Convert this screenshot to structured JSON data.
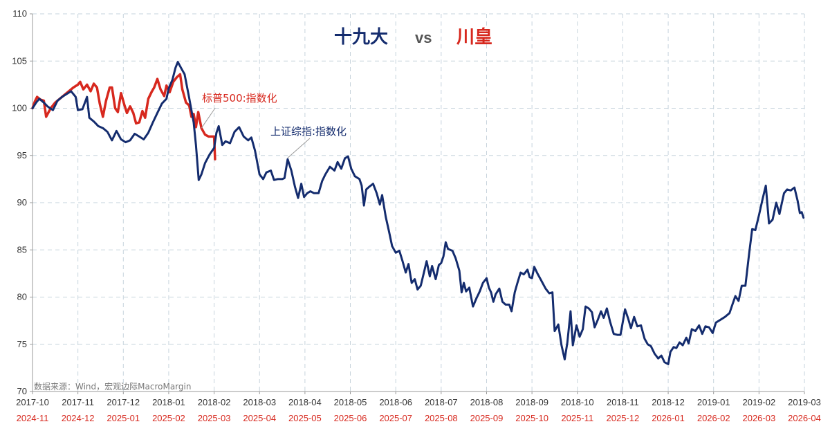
{
  "chart_data": {
    "type": "line",
    "title_part1": "十九大",
    "title_vs": "vs",
    "title_part2": "川皇",
    "source": "数据来源：Wind，宏观边际MacroMargin",
    "ylim": [
      70,
      110
    ],
    "yticks": [
      70,
      75,
      80,
      85,
      90,
      95,
      100,
      105,
      110
    ],
    "grid": true,
    "x_top_labels": [
      "2017-10",
      "2017-11",
      "2017-12",
      "2018-01",
      "2018-02",
      "2018-03",
      "2018-04",
      "2018-05",
      "2018-06",
      "2018-07",
      "2018-08",
      "2018-09",
      "2018-10",
      "2018-11",
      "2018-12",
      "2019-01",
      "2019-02",
      "2019-03"
    ],
    "x_bottom_labels": [
      "2024-11",
      "2024-12",
      "2025-01",
      "2025-02",
      "2025-03",
      "2025-04",
      "2025-05",
      "2025-06",
      "2025-07",
      "2025-08",
      "2025-09",
      "2025-10",
      "2025-11",
      "2025-12",
      "2026-01",
      "2026-02",
      "2026-03",
      "2026-04"
    ],
    "x_range_months": [
      0,
      17
    ],
    "colors": {
      "blue": "#142c6e",
      "red": "#d7281e",
      "grid": "#c6d3dc"
    },
    "series": [
      {
        "name": "上证综指:指数化",
        "color": "#142c6e",
        "points": [
          [
            0.0,
            100.0
          ],
          [
            0.08,
            100.6
          ],
          [
            0.15,
            101.0
          ],
          [
            0.25,
            100.6
          ],
          [
            0.33,
            100.2
          ],
          [
            0.45,
            99.8
          ],
          [
            0.55,
            100.8
          ],
          [
            0.65,
            101.2
          ],
          [
            0.75,
            101.5
          ],
          [
            0.85,
            101.8
          ],
          [
            0.95,
            101.2
          ],
          [
            1.0,
            99.8
          ],
          [
            1.1,
            99.9
          ],
          [
            1.2,
            101.2
          ],
          [
            1.25,
            99.0
          ],
          [
            1.35,
            98.6
          ],
          [
            1.45,
            98.1
          ],
          [
            1.55,
            97.9
          ],
          [
            1.65,
            97.5
          ],
          [
            1.75,
            96.6
          ],
          [
            1.85,
            97.6
          ],
          [
            1.95,
            96.7
          ],
          [
            2.05,
            96.4
          ],
          [
            2.15,
            96.6
          ],
          [
            2.25,
            97.3
          ],
          [
            2.35,
            97.0
          ],
          [
            2.45,
            96.7
          ],
          [
            2.55,
            97.4
          ],
          [
            2.65,
            98.5
          ],
          [
            2.75,
            99.5
          ],
          [
            2.85,
            100.5
          ],
          [
            2.95,
            101.0
          ],
          [
            3.0,
            102.1
          ],
          [
            3.08,
            103.0
          ],
          [
            3.15,
            104.3
          ],
          [
            3.2,
            104.9
          ],
          [
            3.28,
            104.2
          ],
          [
            3.35,
            103.6
          ],
          [
            3.45,
            101.1
          ],
          [
            3.55,
            98.5
          ],
          [
            3.6,
            96.1
          ],
          [
            3.66,
            92.4
          ],
          [
            3.72,
            93.0
          ],
          [
            3.8,
            94.2
          ],
          [
            3.9,
            95.1
          ],
          [
            4.0,
            95.8
          ],
          [
            4.05,
            97.4
          ],
          [
            4.1,
            98.1
          ],
          [
            4.18,
            96.1
          ],
          [
            4.25,
            96.5
          ],
          [
            4.35,
            96.3
          ],
          [
            4.45,
            97.5
          ],
          [
            4.55,
            98.0
          ],
          [
            4.65,
            97.0
          ],
          [
            4.75,
            96.6
          ],
          [
            4.82,
            96.9
          ],
          [
            4.9,
            95.5
          ],
          [
            5.0,
            93.0
          ],
          [
            5.08,
            92.5
          ],
          [
            5.15,
            93.2
          ],
          [
            5.25,
            93.4
          ],
          [
            5.32,
            92.4
          ],
          [
            5.4,
            92.5
          ],
          [
            5.5,
            92.5
          ],
          [
            5.55,
            92.6
          ],
          [
            5.62,
            94.6
          ],
          [
            5.7,
            93.4
          ],
          [
            5.78,
            91.7
          ],
          [
            5.85,
            90.5
          ],
          [
            5.92,
            92.0
          ],
          [
            5.98,
            90.6
          ],
          [
            6.05,
            91.0
          ],
          [
            6.12,
            91.2
          ],
          [
            6.2,
            91.0
          ],
          [
            6.3,
            91.0
          ],
          [
            6.38,
            92.3
          ],
          [
            6.45,
            93.0
          ],
          [
            6.55,
            93.8
          ],
          [
            6.65,
            93.4
          ],
          [
            6.72,
            94.3
          ],
          [
            6.8,
            93.6
          ],
          [
            6.88,
            94.7
          ],
          [
            6.95,
            94.9
          ],
          [
            7.02,
            93.6
          ],
          [
            7.1,
            92.8
          ],
          [
            7.2,
            92.5
          ],
          [
            7.25,
            91.8
          ],
          [
            7.3,
            89.7
          ],
          [
            7.35,
            91.4
          ],
          [
            7.42,
            91.7
          ],
          [
            7.5,
            92.0
          ],
          [
            7.58,
            91.0
          ],
          [
            7.65,
            89.8
          ],
          [
            7.7,
            90.8
          ],
          [
            7.78,
            88.5
          ],
          [
            7.85,
            87.0
          ],
          [
            7.92,
            85.4
          ],
          [
            8.0,
            84.7
          ],
          [
            8.08,
            84.9
          ],
          [
            8.15,
            83.8
          ],
          [
            8.22,
            82.6
          ],
          [
            8.28,
            83.5
          ],
          [
            8.35,
            81.5
          ],
          [
            8.42,
            81.9
          ],
          [
            8.48,
            80.8
          ],
          [
            8.55,
            81.2
          ],
          [
            8.62,
            82.6
          ],
          [
            8.68,
            83.8
          ],
          [
            8.75,
            82.2
          ],
          [
            8.8,
            83.3
          ],
          [
            8.88,
            81.9
          ],
          [
            8.95,
            83.4
          ],
          [
            9.0,
            83.6
          ],
          [
            9.05,
            84.3
          ],
          [
            9.1,
            85.8
          ],
          [
            9.15,
            85.1
          ],
          [
            9.25,
            84.9
          ],
          [
            9.32,
            84.1
          ],
          [
            9.4,
            82.8
          ],
          [
            9.45,
            80.5
          ],
          [
            9.5,
            81.5
          ],
          [
            9.55,
            80.6
          ],
          [
            9.62,
            81.0
          ],
          [
            9.7,
            79.0
          ],
          [
            9.78,
            79.9
          ],
          [
            9.85,
            80.6
          ],
          [
            9.92,
            81.5
          ],
          [
            10.0,
            82.0
          ],
          [
            10.05,
            81.0
          ],
          [
            10.1,
            80.5
          ],
          [
            10.15,
            79.5
          ],
          [
            10.2,
            80.3
          ],
          [
            10.28,
            80.9
          ],
          [
            10.35,
            79.5
          ],
          [
            10.42,
            79.2
          ],
          [
            10.5,
            79.2
          ],
          [
            10.55,
            78.5
          ],
          [
            10.62,
            80.5
          ],
          [
            10.68,
            81.5
          ],
          [
            10.75,
            82.6
          ],
          [
            10.82,
            82.4
          ],
          [
            10.9,
            82.9
          ],
          [
            10.95,
            82.1
          ],
          [
            11.0,
            82.0
          ],
          [
            11.05,
            83.2
          ],
          [
            11.12,
            82.5
          ],
          [
            11.2,
            81.8
          ],
          [
            11.3,
            80.9
          ],
          [
            11.38,
            80.4
          ],
          [
            11.45,
            80.5
          ],
          [
            11.5,
            76.4
          ],
          [
            11.58,
            77.1
          ],
          [
            11.65,
            74.9
          ],
          [
            11.72,
            73.4
          ],
          [
            11.78,
            75.2
          ],
          [
            11.85,
            78.5
          ],
          [
            11.9,
            74.9
          ],
          [
            11.98,
            77.0
          ],
          [
            12.05,
            75.8
          ],
          [
            12.12,
            76.6
          ],
          [
            12.18,
            79.0
          ],
          [
            12.25,
            78.8
          ],
          [
            12.32,
            78.4
          ],
          [
            12.38,
            76.8
          ],
          [
            12.45,
            77.6
          ],
          [
            12.52,
            78.5
          ],
          [
            12.58,
            77.8
          ],
          [
            12.65,
            78.8
          ],
          [
            12.72,
            77.4
          ],
          [
            12.8,
            76.1
          ],
          [
            12.88,
            76.0
          ],
          [
            12.95,
            76.0
          ],
          [
            13.05,
            78.7
          ],
          [
            13.12,
            77.7
          ],
          [
            13.18,
            76.7
          ],
          [
            13.25,
            77.9
          ],
          [
            13.32,
            76.9
          ],
          [
            13.4,
            77.0
          ],
          [
            13.48,
            75.6
          ],
          [
            13.55,
            75.0
          ],
          [
            13.62,
            74.8
          ],
          [
            13.7,
            74.0
          ],
          [
            13.78,
            73.5
          ],
          [
            13.85,
            73.8
          ],
          [
            13.92,
            73.1
          ],
          [
            14.0,
            72.9
          ],
          [
            14.05,
            74.2
          ],
          [
            14.12,
            74.7
          ],
          [
            14.18,
            74.6
          ],
          [
            14.25,
            75.2
          ],
          [
            14.32,
            74.9
          ],
          [
            14.4,
            75.7
          ],
          [
            14.45,
            75.1
          ],
          [
            14.52,
            76.6
          ],
          [
            14.6,
            76.4
          ],
          [
            14.68,
            77.0
          ],
          [
            14.75,
            76.1
          ],
          [
            14.82,
            76.9
          ],
          [
            14.9,
            76.8
          ],
          [
            14.98,
            76.2
          ],
          [
            15.05,
            77.3
          ],
          [
            15.15,
            77.6
          ],
          [
            15.25,
            77.9
          ],
          [
            15.35,
            78.3
          ],
          [
            15.42,
            79.3
          ],
          [
            15.48,
            80.1
          ],
          [
            15.55,
            79.6
          ],
          [
            15.62,
            81.2
          ],
          [
            15.7,
            81.2
          ],
          [
            15.78,
            84.5
          ],
          [
            15.85,
            87.2
          ],
          [
            15.92,
            87.1
          ],
          [
            16.0,
            88.7
          ],
          [
            16.08,
            90.4
          ],
          [
            16.15,
            91.8
          ],
          [
            16.22,
            87.8
          ],
          [
            16.3,
            88.2
          ],
          [
            16.38,
            90.0
          ],
          [
            16.45,
            88.8
          ],
          [
            16.55,
            91.0
          ],
          [
            16.62,
            91.4
          ],
          [
            16.7,
            91.3
          ],
          [
            16.78,
            91.6
          ],
          [
            16.85,
            90.2
          ],
          [
            16.9,
            88.9
          ],
          [
            16.94,
            89.0
          ],
          [
            16.98,
            88.4
          ]
        ]
      },
      {
        "name": "标普500:指数化",
        "color": "#d7281e",
        "points": [
          [
            0.0,
            100.0
          ],
          [
            0.05,
            100.7
          ],
          [
            0.1,
            101.2
          ],
          [
            0.18,
            100.9
          ],
          [
            0.25,
            100.8
          ],
          [
            0.3,
            99.1
          ],
          [
            0.4,
            100.0
          ],
          [
            0.5,
            100.6
          ],
          [
            0.6,
            101.0
          ],
          [
            0.7,
            101.4
          ],
          [
            0.8,
            101.8
          ],
          [
            0.9,
            102.2
          ],
          [
            1.0,
            102.5
          ],
          [
            1.05,
            102.8
          ],
          [
            1.12,
            102.0
          ],
          [
            1.2,
            102.5
          ],
          [
            1.28,
            101.8
          ],
          [
            1.35,
            102.6
          ],
          [
            1.42,
            102.2
          ],
          [
            1.48,
            100.5
          ],
          [
            1.55,
            99.1
          ],
          [
            1.62,
            100.8
          ],
          [
            1.7,
            102.2
          ],
          [
            1.75,
            102.2
          ],
          [
            1.82,
            100.0
          ],
          [
            1.88,
            99.6
          ],
          [
            1.95,
            101.6
          ],
          [
            2.02,
            100.4
          ],
          [
            2.08,
            99.5
          ],
          [
            2.15,
            100.2
          ],
          [
            2.22,
            99.5
          ],
          [
            2.28,
            98.4
          ],
          [
            2.35,
            98.5
          ],
          [
            2.42,
            99.7
          ],
          [
            2.48,
            99.0
          ],
          [
            2.55,
            101.0
          ],
          [
            2.62,
            101.7
          ],
          [
            2.68,
            102.2
          ],
          [
            2.75,
            103.1
          ],
          [
            2.82,
            102.0
          ],
          [
            2.9,
            101.3
          ],
          [
            2.95,
            102.4
          ],
          [
            3.02,
            101.7
          ],
          [
            3.1,
            102.8
          ],
          [
            3.18,
            103.3
          ],
          [
            3.25,
            103.6
          ],
          [
            3.3,
            102.0
          ],
          [
            3.38,
            100.6
          ],
          [
            3.45,
            100.3
          ],
          [
            3.5,
            99.1
          ],
          [
            3.55,
            99.4
          ],
          [
            3.6,
            98.0
          ],
          [
            3.65,
            99.6
          ],
          [
            3.72,
            97.9
          ],
          [
            3.8,
            97.2
          ],
          [
            3.88,
            97.0
          ],
          [
            3.95,
            97.0
          ],
          [
            4.0,
            97.0
          ],
          [
            4.02,
            94.6
          ]
        ]
      }
    ],
    "annotations": [
      {
        "text": "标普500:指数化",
        "series": "标普500:指数化",
        "at": [
          3.72,
          97.9
        ]
      },
      {
        "text": "上证综指:指数化",
        "series": "上证综指:指数化",
        "at": [
          5.62,
          94.6
        ]
      }
    ]
  }
}
